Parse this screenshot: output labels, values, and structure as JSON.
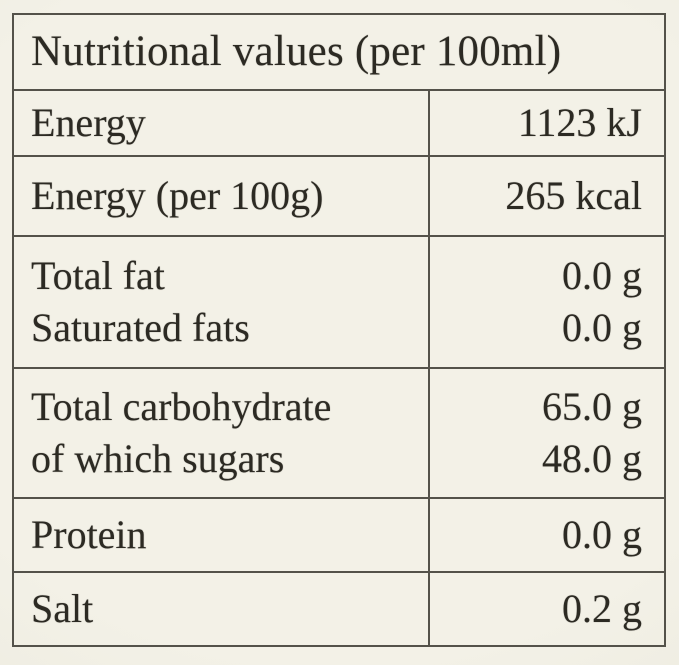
{
  "colors": {
    "background": "#f3f1e7",
    "background_edge": "#e9e7da",
    "ink": "#2c2a23",
    "line": "#54524a"
  },
  "table": {
    "title": "Nutritional values (per 100ml)",
    "rows": [
      {
        "label_lines": [
          "Energy"
        ],
        "value_lines": [
          "1123 kJ"
        ]
      },
      {
        "label_lines": [
          "Energy (per 100g)"
        ],
        "value_lines": [
          "265 kcal"
        ]
      },
      {
        "label_lines": [
          "Total fat",
          "Saturated fats"
        ],
        "value_lines": [
          "0.0 g",
          "0.0 g"
        ]
      },
      {
        "label_lines": [
          "Total carbohydrate",
          "of which sugars"
        ],
        "value_lines": [
          "65.0 g",
          "48.0 g"
        ]
      },
      {
        "label_lines": [
          "Protein"
        ],
        "value_lines": [
          "0.0 g"
        ]
      },
      {
        "label_lines": [
          "Salt"
        ],
        "value_lines": [
          "0.2 g"
        ]
      }
    ]
  }
}
